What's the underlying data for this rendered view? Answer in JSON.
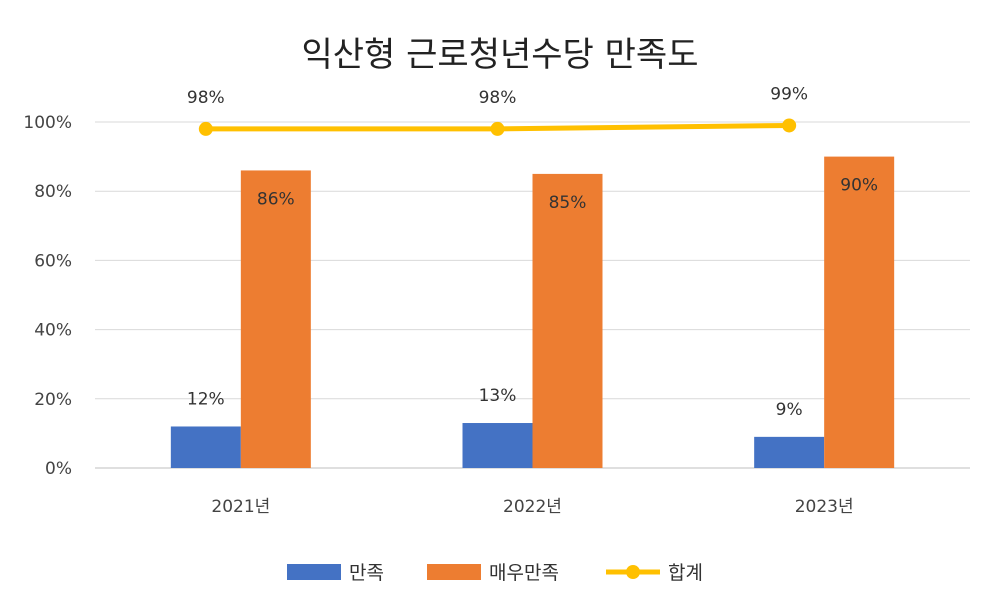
{
  "chart_data": {
    "type": "bar",
    "title": "익산형 근로청년수당 만족도",
    "xlabel": "",
    "ylabel": "",
    "categories": [
      "2021년",
      "2022년",
      "2023년"
    ],
    "ylim": [
      0,
      100
    ],
    "yticks": [
      "0%",
      "20%",
      "40%",
      "60%",
      "80%",
      "100%"
    ],
    "grid": true,
    "legend_position": "bottom",
    "series": [
      {
        "name": "만족",
        "kind": "bar",
        "color": "#4472C4",
        "values": [
          12,
          13,
          9
        ],
        "labels": [
          "12%",
          "13%",
          "9%"
        ]
      },
      {
        "name": "매우만족",
        "kind": "bar",
        "color": "#ED7D31",
        "values": [
          86,
          85,
          90
        ],
        "labels": [
          "86%",
          "85%",
          "90%"
        ]
      },
      {
        "name": "합계",
        "kind": "line",
        "color": "#FFC000",
        "values": [
          98,
          98,
          99
        ],
        "labels": [
          "98%",
          "98%",
          "99%"
        ]
      }
    ]
  }
}
